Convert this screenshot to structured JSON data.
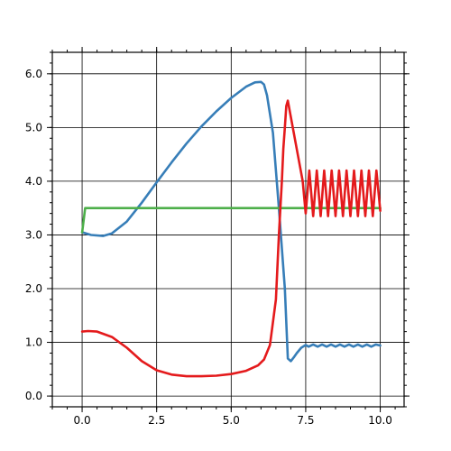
{
  "chart_data": {
    "type": "line",
    "title": "",
    "xlabel": "",
    "ylabel": "",
    "xlim": [
      -1.0,
      10.8
    ],
    "ylim": [
      -0.2,
      6.4
    ],
    "grid": true,
    "legend": "none",
    "x_ticks": [
      {
        "value": 0.0,
        "label": "0.0"
      },
      {
        "value": 2.5,
        "label": "2.5"
      },
      {
        "value": 5.0,
        "label": "5.0"
      },
      {
        "value": 7.5,
        "label": "7.5"
      },
      {
        "value": 10.0,
        "label": "10.0"
      }
    ],
    "y_ticks": [
      {
        "value": 0.0,
        "label": "0.0"
      },
      {
        "value": 1.0,
        "label": "1.0"
      },
      {
        "value": 2.0,
        "label": "2.0"
      },
      {
        "value": 3.0,
        "label": "3.0"
      },
      {
        "value": 4.0,
        "label": "4.0"
      },
      {
        "value": 5.0,
        "label": "5.0"
      },
      {
        "value": 6.0,
        "label": "6.0"
      }
    ],
    "series": [
      {
        "color": "#377eb8",
        "x": [
          0.0,
          0.3,
          0.7,
          1.0,
          1.5,
          2.0,
          2.5,
          3.0,
          3.5,
          4.0,
          4.5,
          5.0,
          5.5,
          5.8,
          6.0,
          6.1,
          6.2,
          6.4,
          6.6,
          6.8,
          6.9,
          7.0,
          7.1,
          7.2,
          7.35,
          7.5,
          7.6,
          7.75,
          7.9,
          8.05,
          8.2,
          8.35,
          8.5,
          8.65,
          8.8,
          8.95,
          9.1,
          9.25,
          9.4,
          9.55,
          9.7,
          9.85,
          10.0
        ],
        "y": [
          3.05,
          3.0,
          2.98,
          3.03,
          3.25,
          3.6,
          3.98,
          4.35,
          4.7,
          5.02,
          5.3,
          5.55,
          5.76,
          5.84,
          5.85,
          5.8,
          5.6,
          4.9,
          3.5,
          2.0,
          0.7,
          0.65,
          0.72,
          0.8,
          0.9,
          0.95,
          0.92,
          0.96,
          0.92,
          0.96,
          0.92,
          0.96,
          0.92,
          0.96,
          0.92,
          0.96,
          0.92,
          0.96,
          0.92,
          0.96,
          0.92,
          0.96,
          0.94
        ]
      },
      {
        "color": "#4daf4a",
        "x": [
          0.0,
          0.1,
          0.5,
          1.0,
          2.0,
          3.0,
          4.0,
          5.0,
          6.0,
          7.0,
          8.0,
          9.0,
          10.0
        ],
        "y": [
          3.05,
          3.5,
          3.5,
          3.5,
          3.5,
          3.5,
          3.5,
          3.5,
          3.5,
          3.5,
          3.5,
          3.5,
          3.5
        ]
      },
      {
        "color": "#e41a1c",
        "x": [
          0.0,
          0.2,
          0.5,
          1.0,
          1.5,
          2.0,
          2.5,
          3.0,
          3.5,
          4.0,
          4.5,
          5.0,
          5.5,
          5.9,
          6.1,
          6.3,
          6.5,
          6.6,
          6.7,
          6.75,
          6.8,
          6.85,
          6.9,
          7.0,
          7.2,
          7.4,
          7.5,
          7.62,
          7.75,
          7.87,
          8.0,
          8.12,
          8.25,
          8.37,
          8.5,
          8.62,
          8.75,
          8.87,
          9.0,
          9.12,
          9.25,
          9.37,
          9.5,
          9.62,
          9.75,
          9.87,
          10.0
        ],
        "y": [
          1.2,
          1.21,
          1.2,
          1.1,
          0.9,
          0.65,
          0.48,
          0.4,
          0.37,
          0.37,
          0.38,
          0.41,
          0.47,
          0.57,
          0.68,
          0.95,
          1.8,
          3.0,
          4.0,
          4.6,
          5.0,
          5.4,
          5.5,
          5.2,
          4.6,
          4.0,
          3.4,
          4.2,
          3.35,
          4.2,
          3.35,
          4.2,
          3.35,
          4.2,
          3.35,
          4.2,
          3.35,
          4.2,
          3.35,
          4.2,
          3.35,
          4.2,
          3.35,
          4.2,
          3.35,
          4.2,
          3.45
        ]
      }
    ]
  }
}
